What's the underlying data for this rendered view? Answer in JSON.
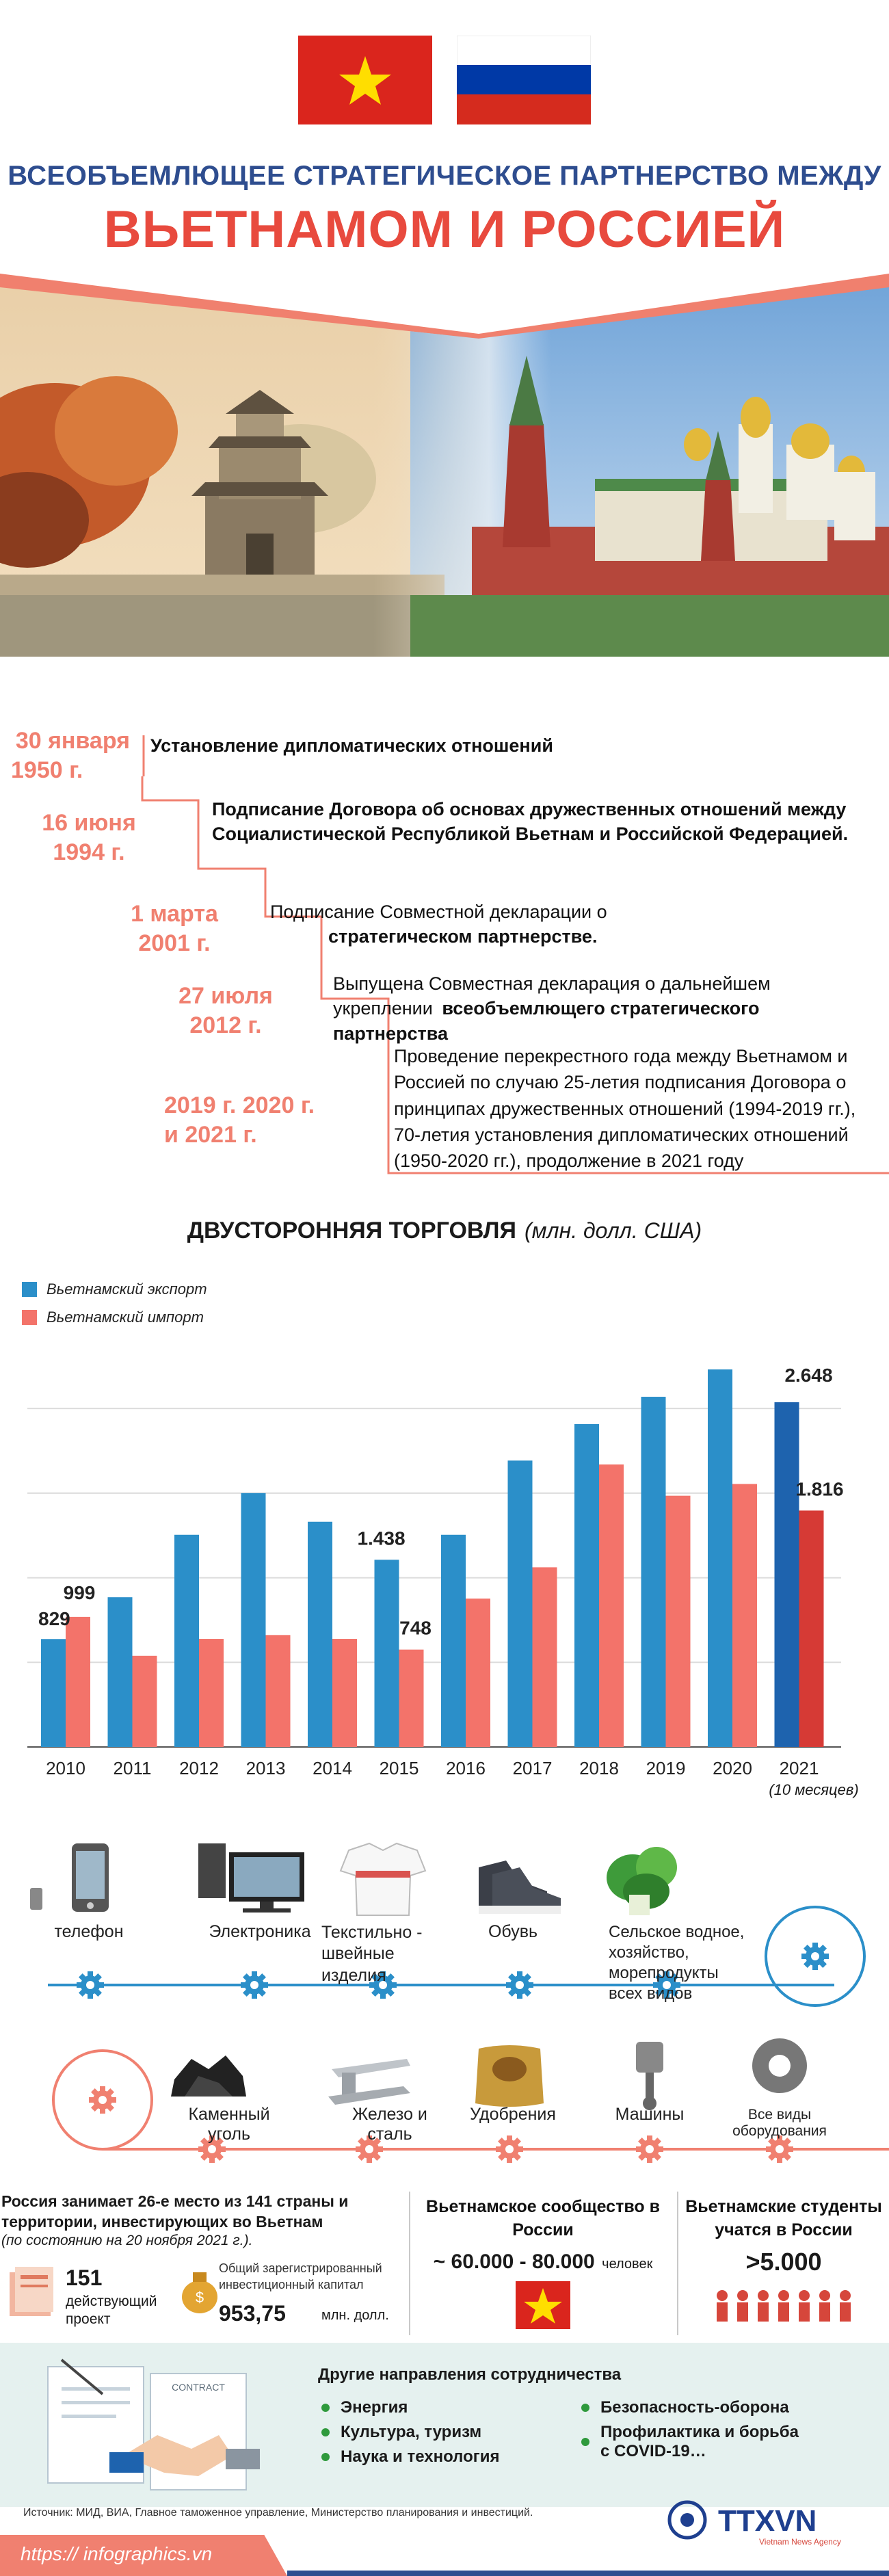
{
  "header": {
    "title_line1": "ВСЕОБЪЕМЛЮЩЕЕ СТРАТЕГИЧЕСКОЕ ПАРТНЕРСТВО МЕЖДУ",
    "title_line2": "ВЬЕТНАМОМ И РОССИЕЙ"
  },
  "flags": [
    {
      "country": "vietnam",
      "colors": [
        "#da251d",
        "#ffde00"
      ]
    },
    {
      "country": "russia",
      "colors": [
        "#ffffff",
        "#0039a6",
        "#d52b1e"
      ]
    }
  ],
  "timeline": [
    {
      "date": "30 января 1950 г.",
      "date_l1": "30 января",
      "date_l2": "1950 г.",
      "text_plain": "",
      "text_bold": "Установление дипломатических отношений"
    },
    {
      "date_l1": "16 июня",
      "date_l2": "1994 г.",
      "text_plain": "",
      "text_bold": "Подписание Договора об основах дружественных отношений между Социалистической Республикой Вьетнам и Российской Федерацией."
    },
    {
      "date_l1": "1 марта",
      "date_l2": "2001 г.",
      "text_plain": "Подписание Совместной декларации о",
      "text_bold": "стратегическом партнерстве."
    },
    {
      "date_l1": "27 июля",
      "date_l2": "2012 г.",
      "text_plain": "Выпущена Совместная декларация о дальнейшем укреплении",
      "text_bold": "всеобъемлющего стратегического партнерства"
    },
    {
      "date_l1": "2019 г. 2020 г.",
      "date_l2": "и 2021 г.",
      "text_plain": "Проведение перекрестного года между Вьетнамом и Россией по случаю 25-летия подписания Договора о принципах дружественных отношений (1994-2019 гг.), 70-летия установления дипломатических отношений (1950-2020 гг.), продолжение в 2021 году",
      "text_bold": ""
    }
  ],
  "trade": {
    "title": "ДВУСТОРОННЯЯ ТОРГОВЛЯ",
    "unit": "(млн. долл. США)",
    "legend_export": "Вьетнамский экспорт",
    "legend_import": "Вьетнамский импорт",
    "footnote": "(10 месяцев)",
    "colors": {
      "export": "#2b8fc9",
      "import": "#f3736a",
      "export_2021": "#1e63ae",
      "import_2021": "#d63a35"
    }
  },
  "chart_data": {
    "type": "bar",
    "title": "ДВУСТОРОННЯЯ ТОРГОВЛЯ",
    "categories": [
      "2010",
      "2011",
      "2012",
      "2013",
      "2014",
      "2015",
      "2016",
      "2017",
      "2018",
      "2019",
      "2020",
      "2021"
    ],
    "series": [
      {
        "name": "Вьетнамский экспорт",
        "values": [
          829,
          1150,
          1630,
          1950,
          1730,
          1438,
          1630,
          2200,
          2480,
          2690,
          2900,
          2648
        ]
      },
      {
        "name": "Вьетнамский импорт",
        "values": [
          999,
          700,
          830,
          860,
          830,
          748,
          1140,
          1380,
          2170,
          1930,
          2020,
          1816
        ]
      }
    ],
    "data_labels": [
      {
        "series": 0,
        "index": 0,
        "text": "829"
      },
      {
        "series": 1,
        "index": 0,
        "text": "999"
      },
      {
        "series": 0,
        "index": 5,
        "text": "1.438"
      },
      {
        "series": 1,
        "index": 5,
        "text": "748"
      },
      {
        "series": 0,
        "index": 11,
        "text": "2.648"
      },
      {
        "series": 1,
        "index": 11,
        "text": "1.816"
      }
    ],
    "ylim": [
      0,
      3100
    ],
    "grid": true,
    "legend": "top-left"
  },
  "exports_products": [
    {
      "label": "телефон",
      "icon": "phone-icon"
    },
    {
      "label": "Электроника",
      "icon": "computer-icon"
    },
    {
      "label": "Текстильно - швейные изделия",
      "icon": "shirt-icon"
    },
    {
      "label": "Обувь",
      "icon": "sneaker-icon"
    },
    {
      "label": "Сельское водное, хозяйство, морепродукты всех видов",
      "icon": "vegetable-icon"
    }
  ],
  "imports_products": [
    {
      "label": "Каменный уголь",
      "icon": "coal-icon"
    },
    {
      "label": "Железо и сталь",
      "icon": "steel-beam-icon"
    },
    {
      "label": "Удобрения",
      "icon": "fertilizer-bag-icon"
    },
    {
      "label": "Машины",
      "icon": "piston-icon"
    },
    {
      "label": "Все виды оборудования",
      "icon": "gear-icon"
    }
  ],
  "investment": {
    "heading": "Россия занимает 26-е место из 141 страны и территории, инвестирующих во Вьетнам",
    "note": "(по состоянию на 20 ноября 2021 г.).",
    "projects_value": "151",
    "projects_label": "действующий проект",
    "capital_label": "Общий зарегистрированный инвестиционный капитал",
    "capital_value": "953,75",
    "capital_unit": "млн. долл."
  },
  "community": {
    "heading": "Вьетнамское сообщество в России",
    "value": "~ 60.000 - 80.000",
    "unit": "человек"
  },
  "students": {
    "heading": "Вьетнамские студенты учатся в России",
    "value": ">5.000"
  },
  "cooperation": {
    "heading": "Другие направления сотрудничества",
    "left": [
      "Энергия",
      "Культура, туризм",
      "Наука и технология"
    ],
    "right": [
      "Безопасность-оборона",
      "Профилактика и борьба с COVID-19…"
    ],
    "contract_label": "CONTRACT"
  },
  "footer": {
    "source": "Источник: МИД, ВИА, Главное таможенное управление, Министерство планирования и инвестиций.",
    "url": "https:// infographics.vn",
    "logo": "TTXVN",
    "logo_sub": "Vietnam News Agency"
  }
}
